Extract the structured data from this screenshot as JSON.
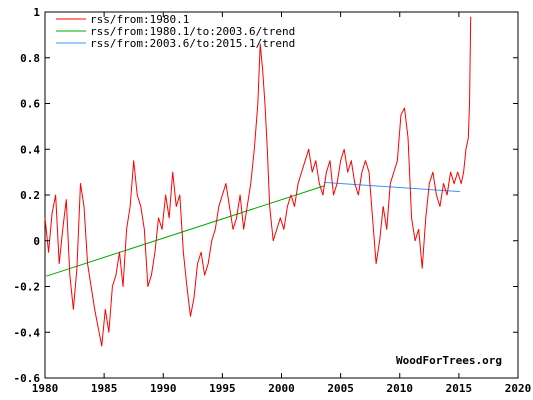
{
  "chart_data": {
    "type": "line",
    "title": "",
    "xlabel": "",
    "ylabel": "",
    "xlim": [
      1980,
      2020
    ],
    "ylim": [
      -0.6,
      1
    ],
    "x_ticks": [
      1980,
      1985,
      1990,
      1995,
      2000,
      2005,
      2010,
      2015,
      2020
    ],
    "y_ticks": [
      -0.6,
      -0.4,
      -0.2,
      0,
      0.2,
      0.4,
      0.6,
      0.8,
      1
    ],
    "y_tick_labels": [
      "-0.6",
      "-0.4",
      "-0.2",
      "0",
      "0.2",
      "0.4",
      "0.6",
      "0.8",
      "1"
    ],
    "grid": false,
    "legend_position": "top-left",
    "credit": "WoodForTrees.org",
    "series": [
      {
        "name": "rss/from:1980.1",
        "color": "#ff0000",
        "x": [
          1980.0,
          1980.3,
          1980.6,
          1980.9,
          1981.2,
          1981.5,
          1981.8,
          1982.1,
          1982.4,
          1982.7,
          1983.0,
          1983.3,
          1983.6,
          1983.9,
          1984.2,
          1984.5,
          1984.8,
          1985.1,
          1985.4,
          1985.7,
          1986.0,
          1986.3,
          1986.6,
          1986.9,
          1987.2,
          1987.5,
          1987.8,
          1988.1,
          1988.4,
          1988.7,
          1989.0,
          1989.3,
          1989.6,
          1989.9,
          1990.2,
          1990.5,
          1990.8,
          1991.1,
          1991.4,
          1991.7,
          1992.0,
          1992.3,
          1992.6,
          1992.9,
          1993.2,
          1993.5,
          1993.8,
          1994.1,
          1994.4,
          1994.7,
          1995.0,
          1995.3,
          1995.6,
          1995.9,
          1996.2,
          1996.5,
          1996.8,
          1997.1,
          1997.4,
          1997.7,
          1998.0,
          1998.2,
          1998.4,
          1998.6,
          1998.8,
          1999.0,
          1999.3,
          1999.6,
          1999.9,
          2000.2,
          2000.5,
          2000.8,
          2001.1,
          2001.4,
          2001.7,
          2002.0,
          2002.3,
          2002.6,
          2002.9,
          2003.2,
          2003.5,
          2003.8,
          2004.1,
          2004.4,
          2004.7,
          2005.0,
          2005.3,
          2005.6,
          2005.9,
          2006.2,
          2006.5,
          2006.8,
          2007.1,
          2007.4,
          2007.7,
          2008.0,
          2008.3,
          2008.6,
          2008.9,
          2009.2,
          2009.5,
          2009.8,
          2010.1,
          2010.4,
          2010.7,
          2011.0,
          2011.3,
          2011.6,
          2011.9,
          2012.2,
          2012.5,
          2012.8,
          2013.1,
          2013.4,
          2013.7,
          2014.0,
          2014.3,
          2014.6,
          2014.9,
          2015.2,
          2015.4,
          2015.6,
          2015.8,
          2015.9,
          2016.0
        ],
        "y": [
          0.1,
          -0.05,
          0.12,
          0.2,
          -0.1,
          0.05,
          0.18,
          -0.15,
          -0.3,
          -0.12,
          0.25,
          0.15,
          -0.1,
          -0.2,
          -0.3,
          -0.38,
          -0.46,
          -0.3,
          -0.4,
          -0.2,
          -0.15,
          -0.05,
          -0.2,
          0.05,
          0.15,
          0.35,
          0.2,
          0.15,
          0.05,
          -0.2,
          -0.15,
          -0.05,
          0.1,
          0.05,
          0.2,
          0.1,
          0.3,
          0.15,
          0.2,
          -0.05,
          -0.2,
          -0.33,
          -0.25,
          -0.1,
          -0.05,
          -0.15,
          -0.1,
          0.0,
          0.05,
          0.15,
          0.2,
          0.25,
          0.15,
          0.05,
          0.1,
          0.2,
          0.05,
          0.15,
          0.25,
          0.4,
          0.6,
          0.86,
          0.75,
          0.6,
          0.4,
          0.15,
          0.0,
          0.05,
          0.1,
          0.05,
          0.15,
          0.2,
          0.15,
          0.25,
          0.3,
          0.35,
          0.4,
          0.3,
          0.35,
          0.25,
          0.2,
          0.3,
          0.35,
          0.2,
          0.25,
          0.35,
          0.4,
          0.3,
          0.35,
          0.25,
          0.2,
          0.3,
          0.35,
          0.3,
          0.1,
          -0.1,
          0.0,
          0.15,
          0.05,
          0.25,
          0.3,
          0.35,
          0.55,
          0.58,
          0.45,
          0.1,
          0.0,
          0.05,
          -0.12,
          0.1,
          0.25,
          0.3,
          0.2,
          0.15,
          0.25,
          0.2,
          0.3,
          0.25,
          0.3,
          0.25,
          0.3,
          0.4,
          0.45,
          0.6,
          0.98
        ]
      },
      {
        "name": "rss/from:1980.1/to:2003.6/trend",
        "color": "#00aa00",
        "x": [
          1980.1,
          2003.6
        ],
        "y": [
          -0.155,
          0.24
        ]
      },
      {
        "name": "rss/from:2003.6/to:2015.1/trend",
        "color": "#3399ff",
        "x": [
          2003.6,
          2015.1
        ],
        "y": [
          0.255,
          0.215
        ]
      }
    ]
  }
}
